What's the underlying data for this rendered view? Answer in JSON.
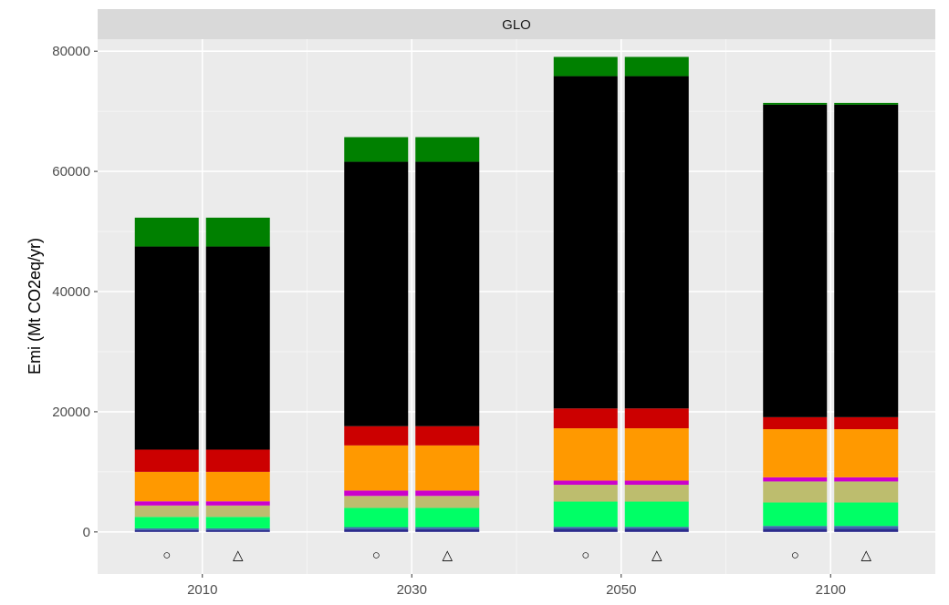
{
  "chart_data": {
    "type": "bar",
    "stacked": true,
    "panel": "GLO",
    "ylabel": "Emi (Mt CO2eq/yr)",
    "xlabel": "",
    "ylim": [
      -7000,
      82000
    ],
    "y_ticks": [
      0,
      20000,
      40000,
      60000,
      80000
    ],
    "y_tick_labels": [
      "0",
      "20000",
      "40000",
      "60000",
      "80000"
    ],
    "categories": [
      "2010",
      "2030",
      "2050",
      "2100"
    ],
    "bars_per_category": [
      "circle",
      "triangle"
    ],
    "marker_symbols": [
      "○",
      "△"
    ],
    "grid": true,
    "legend": "none",
    "series": [
      {
        "color": "#2c2c8c",
        "values": [
          300,
          450,
          500,
          500
        ]
      },
      {
        "color": "#4169b0",
        "values": [
          300,
          350,
          350,
          500
        ]
      },
      {
        "color": "#00ff66",
        "values": [
          1900,
          3200,
          4200,
          3900
        ]
      },
      {
        "color": "#bdbd6e",
        "values": [
          1900,
          2000,
          2800,
          3500
        ]
      },
      {
        "color": "#cc00cc",
        "values": [
          700,
          900,
          700,
          700
        ]
      },
      {
        "color": "#ff9900",
        "values": [
          4900,
          7500,
          8700,
          8000
        ]
      },
      {
        "color": "#cc0000",
        "values": [
          3700,
          3200,
          3300,
          2000
        ]
      },
      {
        "color": "#000000",
        "values": [
          33800,
          44000,
          55300,
          52000
        ]
      },
      {
        "color": "#008000",
        "values": [
          4800,
          4100,
          3200,
          300
        ]
      }
    ]
  }
}
